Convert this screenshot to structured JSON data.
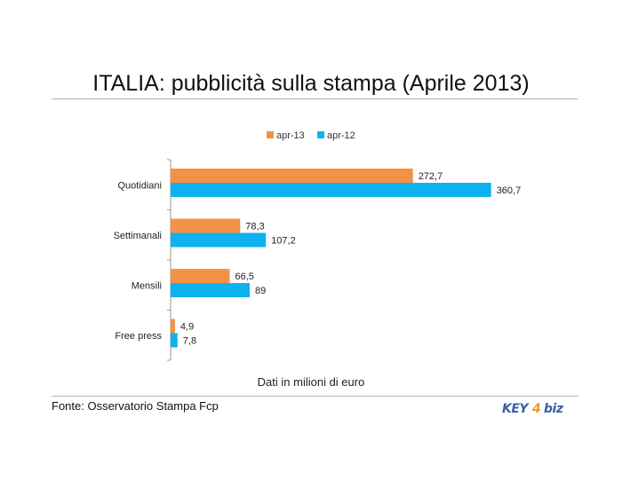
{
  "page": {
    "title": "ITALIA: pubblicità sulla stampa (Aprile 2013)",
    "note": "Dati in milioni di euro",
    "source": "Fonte: Osservatorio Stampa Fcp",
    "logo_text": "KEY4biz"
  },
  "chart_data": {
    "type": "bar",
    "orientation": "horizontal",
    "categories": [
      "Quotidiani",
      "Settimanali",
      "Mensili",
      "Free press"
    ],
    "series": [
      {
        "name": "apr-13",
        "color": "#f39244",
        "values": [
          272.7,
          78.3,
          66.5,
          4.9
        ],
        "labels": [
          "272,7",
          "78,3",
          "66,5",
          "4,9"
        ]
      },
      {
        "name": "apr-12",
        "color": "#0db2ef",
        "values": [
          360.7,
          107.2,
          89,
          7.8
        ],
        "labels": [
          "360,7",
          "107,2",
          "89",
          "7,8"
        ]
      }
    ],
    "xlim": [
      0,
      400
    ],
    "legend": "top",
    "grid": false
  }
}
